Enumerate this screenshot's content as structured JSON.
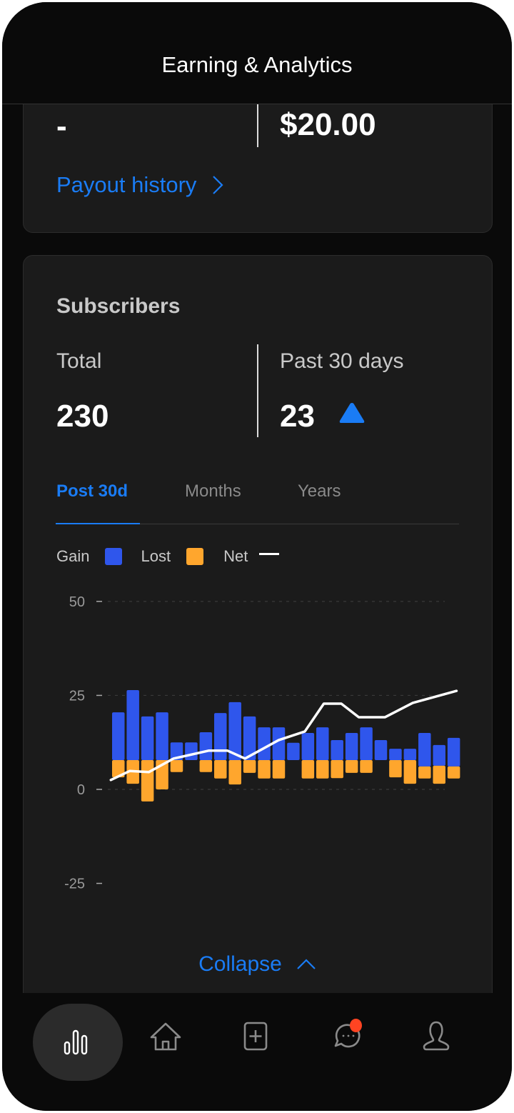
{
  "header": {
    "title": "Earning & Analytics"
  },
  "payout_card": {
    "left_value": "-",
    "right_value": "$20.00",
    "payout_history_link": "Payout history"
  },
  "subscribers": {
    "heading": "Subscribers",
    "total_label": "Total",
    "total_value": "230",
    "past_label": "Past 30 days",
    "past_value": "23",
    "trend": "up",
    "tabs": [
      {
        "label": "Post 30d",
        "active": true
      },
      {
        "label": "Months",
        "active": false
      },
      {
        "label": "Years",
        "active": false
      }
    ],
    "legend": [
      {
        "label": "Gain",
        "color": "#2f56ec"
      },
      {
        "label": "Lost",
        "color": "#ffa62d"
      },
      {
        "label": "Net",
        "color": "#ffffff"
      }
    ],
    "collapse_label": "Collapse"
  },
  "chart_data": {
    "type": "bar",
    "ylim": [
      -25,
      50
    ],
    "yticks": [
      "50",
      "25",
      "0",
      "-25"
    ],
    "ytick_values": [
      50,
      25,
      0,
      -25
    ],
    "grid": true,
    "legend_placement": "top-left",
    "series": [
      {
        "name": "Gain",
        "color": "#2f56ec",
        "top": [
          20.5,
          26.4,
          19.4,
          20.5,
          12.5,
          12.5,
          15.2,
          20.3,
          23.2,
          19.4,
          16.5,
          16.5,
          12.4,
          15.0,
          16.5,
          13.1,
          15.0,
          16.5,
          13.1,
          10.8,
          10.8,
          15.0,
          11.8,
          13.7
        ],
        "base": [
          7.8,
          7.8,
          7.8,
          7.8,
          7.8,
          7.8,
          7.8,
          7.8,
          7.8,
          7.8,
          7.8,
          7.8,
          7.8,
          7.8,
          7.8,
          7.8,
          7.8,
          7.8,
          7.8,
          7.8,
          7.8,
          6.1,
          6.3,
          6.1
        ]
      },
      {
        "name": "Lost",
        "color": "#ffa62d",
        "bottom": [
          3.2,
          1.5,
          -3.2,
          0,
          4.6,
          null,
          4.6,
          2.9,
          1.3,
          4.4,
          2.9,
          2.9,
          null,
          2.9,
          2.9,
          3.0,
          4.4,
          4.4,
          null,
          3.2,
          1.5,
          2.9,
          1.5,
          2.9
        ]
      },
      {
        "name": "Net",
        "color": "#ffffff",
        "points": [
          [
            -0.5,
            2.5
          ],
          [
            0.8,
            4.9
          ],
          [
            2.1,
            4.6
          ],
          [
            3.8,
            8.2
          ],
          [
            6.2,
            10.3
          ],
          [
            7.5,
            10.3
          ],
          [
            8.7,
            8.2
          ],
          [
            11.0,
            13.1
          ],
          [
            12.8,
            15.4
          ],
          [
            14.1,
            22.8
          ],
          [
            15.3,
            22.8
          ],
          [
            16.5,
            19.2
          ],
          [
            18.3,
            19.2
          ],
          [
            20.2,
            23.0
          ],
          [
            23.2,
            26.2
          ]
        ]
      }
    ]
  },
  "nav": [
    {
      "icon": "bar-chart-icon",
      "active": true
    },
    {
      "icon": "home-icon"
    },
    {
      "icon": "add-post-icon"
    },
    {
      "icon": "messages-icon",
      "badge": true,
      "badge_color": "#ff4422"
    },
    {
      "icon": "profile-icon"
    }
  ]
}
